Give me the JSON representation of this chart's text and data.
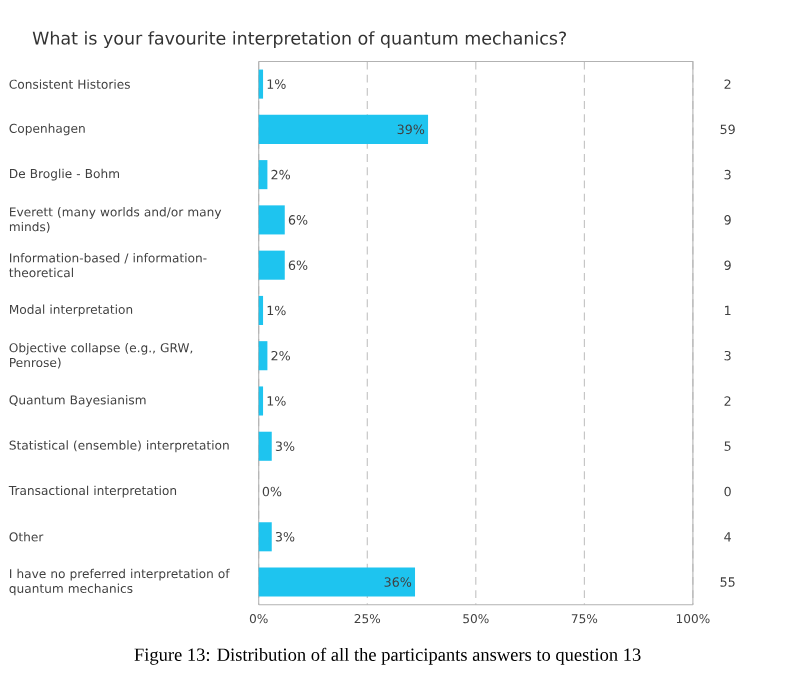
{
  "chart_data": {
    "type": "bar",
    "orientation": "horizontal",
    "title": "What is your favourite interpretation of quantum mechanics?",
    "categories": [
      "Consistent Histories",
      "Copenhagen",
      "De Broglie - Bohm",
      "Everett (many worlds and/or many minds)",
      "Information-based / information-theoretical",
      "Modal interpretation",
      "Objective collapse (e.g., GRW, Penrose)",
      "Quantum Bayesianism",
      "Statistical (ensemble) interpretation",
      "Transactional interpretation",
      "Other",
      "I have no preferred interpretation of quantum mechanics"
    ],
    "values": [
      1,
      39,
      2,
      6,
      6,
      1,
      2,
      1,
      3,
      0,
      3,
      36
    ],
    "value_labels": [
      "1%",
      "39%",
      "2%",
      "6%",
      "6%",
      "1%",
      "2%",
      "1%",
      "3%",
      "0%",
      "3%",
      "36%"
    ],
    "color": "#1ec4ef",
    "xlim": [
      0,
      100
    ],
    "xticks": [
      {
        "value": 0,
        "label": "0%"
      },
      {
        "value": 25,
        "label": "25%"
      },
      {
        "value": 50,
        "label": "50%"
      },
      {
        "value": 75,
        "label": "75%"
      },
      {
        "value": 100,
        "label": "100%"
      }
    ],
    "grid": "x",
    "annotations": [
      "2",
      "59",
      "3",
      "9",
      "9",
      "1",
      "3",
      "2",
      "5",
      "0",
      "4",
      "55",
      "Figure 13: Distribution of all the participants answers to question 13"
    ]
  }
}
